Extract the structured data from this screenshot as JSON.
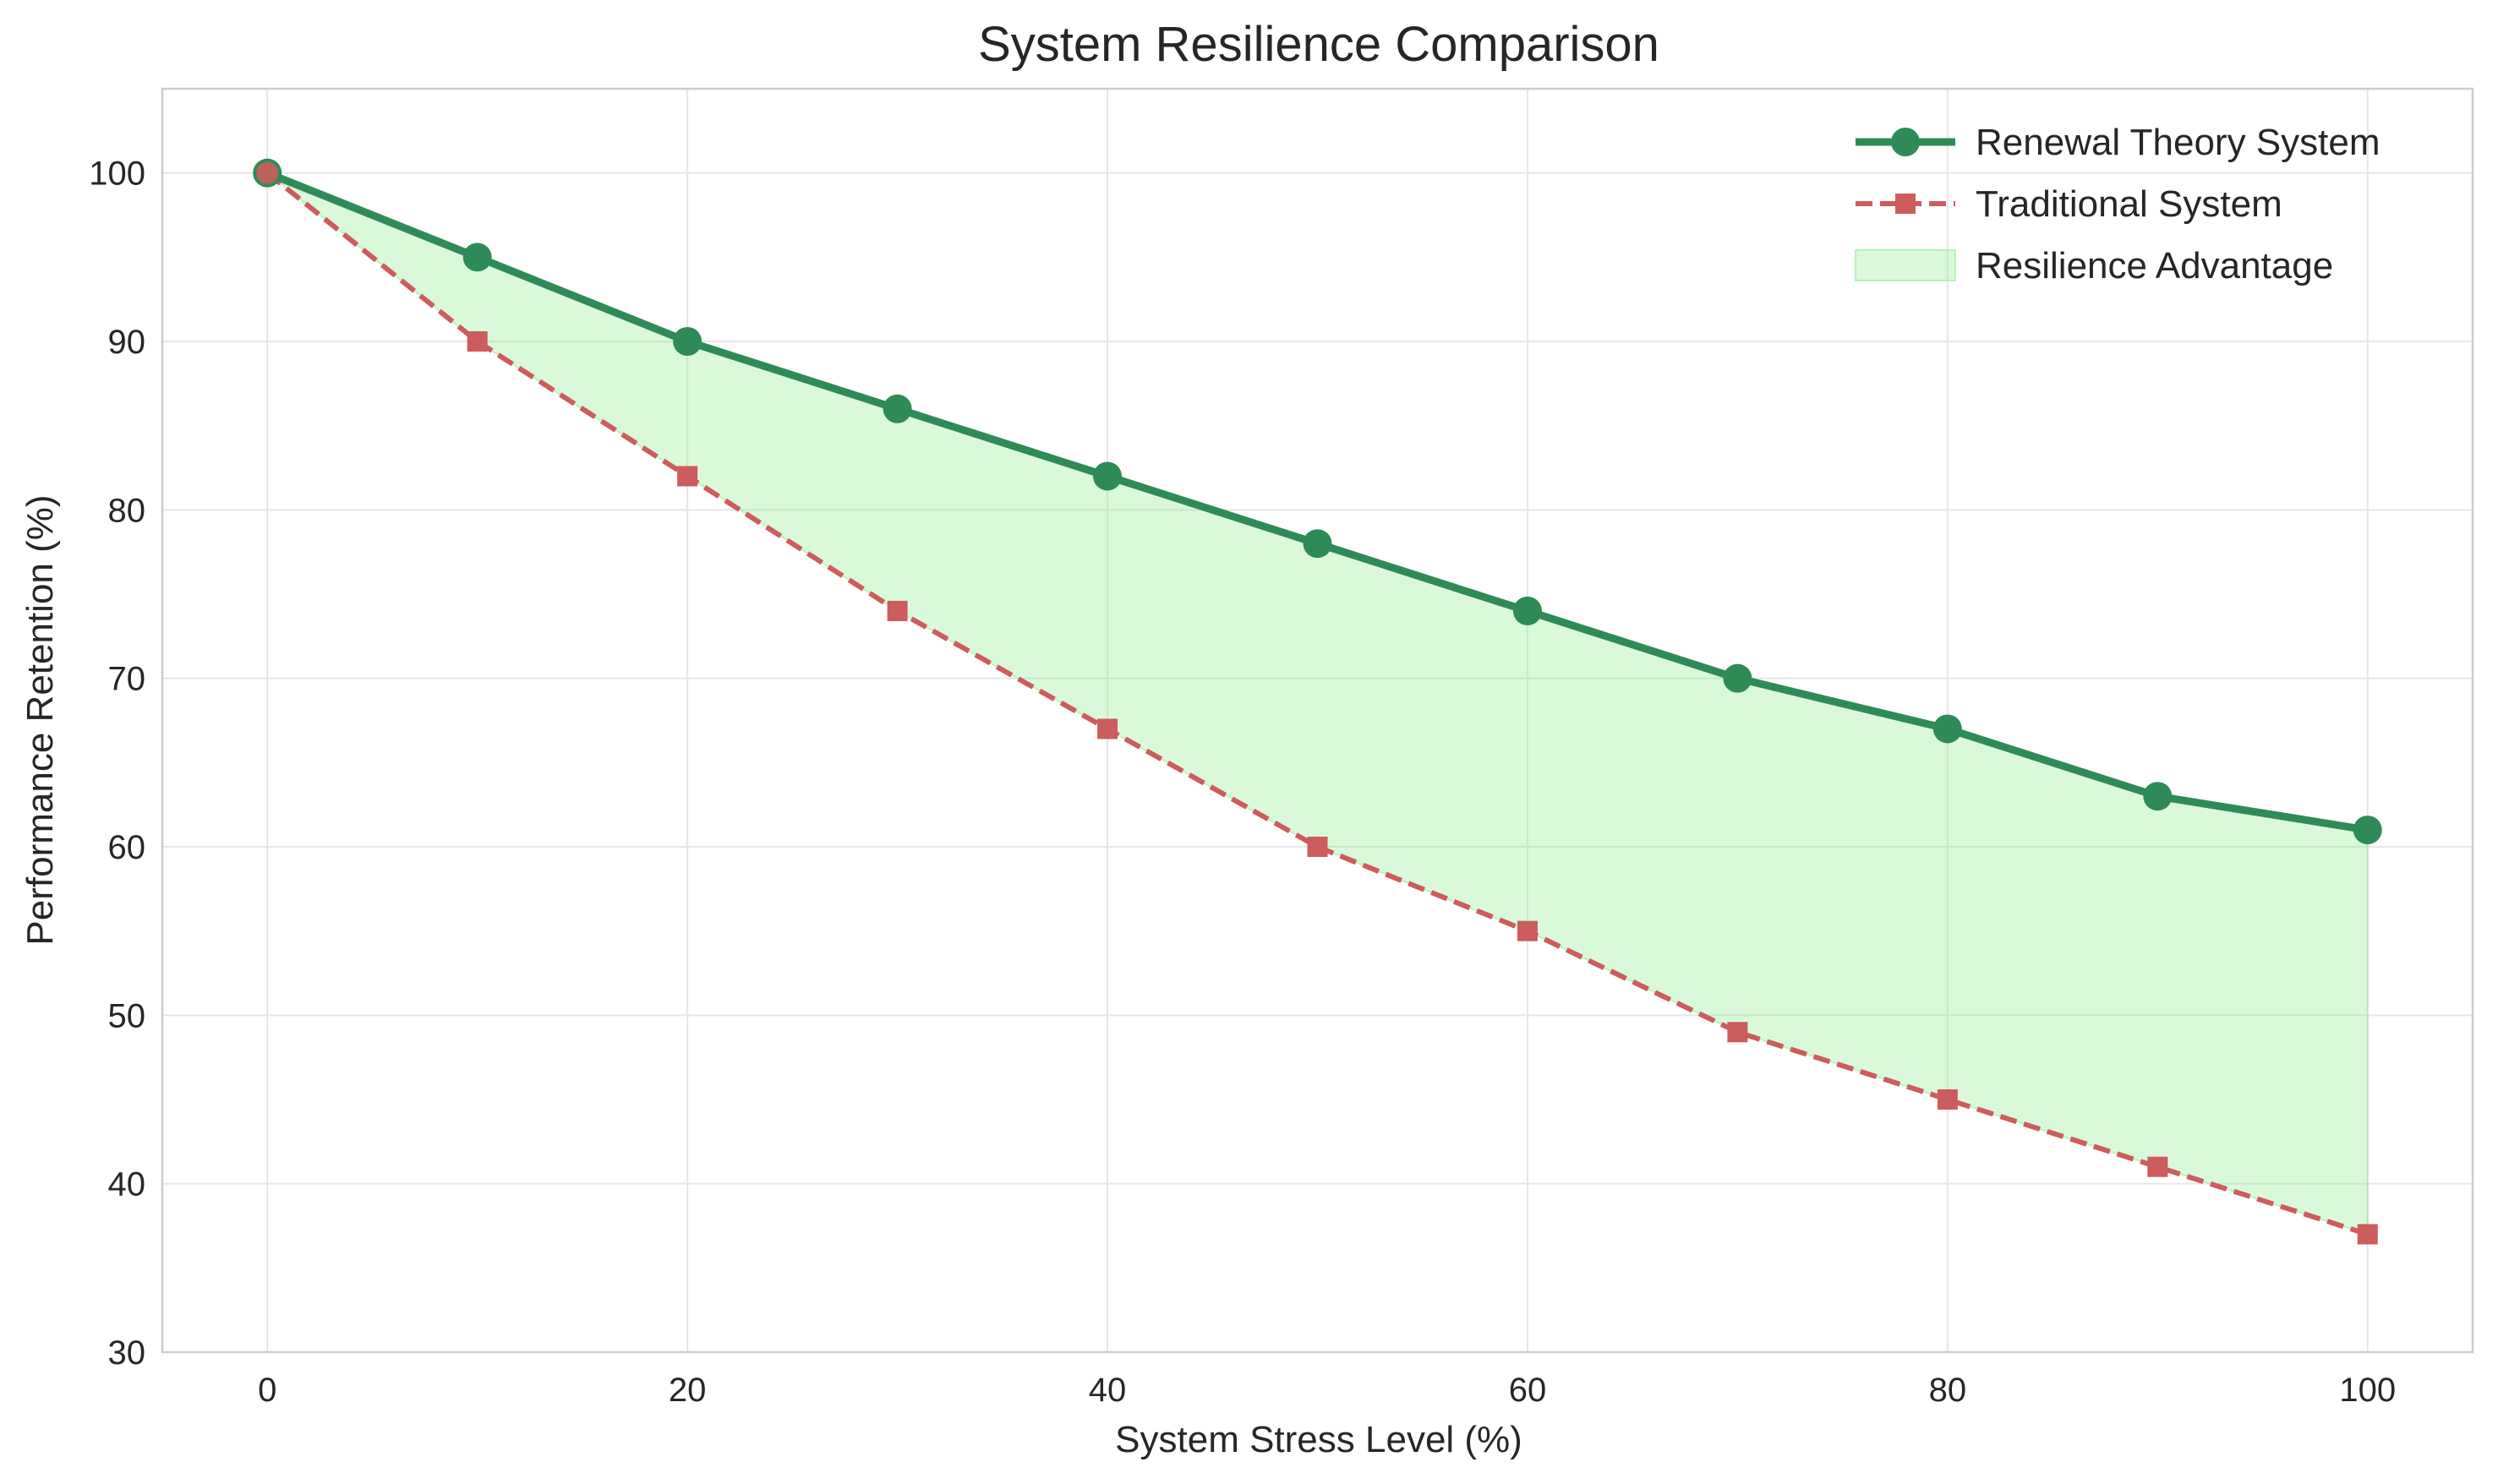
{
  "chart_data": {
    "type": "line",
    "title": "System Resilience Comparison",
    "xlabel": "System Stress Level (%)",
    "ylabel": "Performance Retention (%)",
    "x": [
      0,
      10,
      20,
      30,
      40,
      50,
      60,
      70,
      80,
      90,
      100
    ],
    "xlim": [
      -5,
      105
    ],
    "ylim": [
      30,
      105
    ],
    "xticks": [
      0,
      20,
      40,
      60,
      80,
      100
    ],
    "yticks": [
      30,
      40,
      50,
      60,
      70,
      80,
      90,
      100
    ],
    "grid": true,
    "legend_position": "top-right",
    "series": [
      {
        "name": "Renewal Theory System",
        "values": [
          100,
          95,
          90,
          86,
          82,
          78,
          74,
          70,
          67,
          63,
          61
        ],
        "color": "#2e8b57",
        "line_style": "solid",
        "marker": "circle"
      },
      {
        "name": "Traditional System",
        "values": [
          100,
          90,
          82,
          74,
          67,
          60,
          55,
          49,
          45,
          41,
          37
        ],
        "color": "#cd5c5c",
        "line_style": "dashed",
        "marker": "square"
      }
    ],
    "fill_between": {
      "name": "Resilience Advantage",
      "color": "#90ee90",
      "opacity": 0.33
    }
  }
}
